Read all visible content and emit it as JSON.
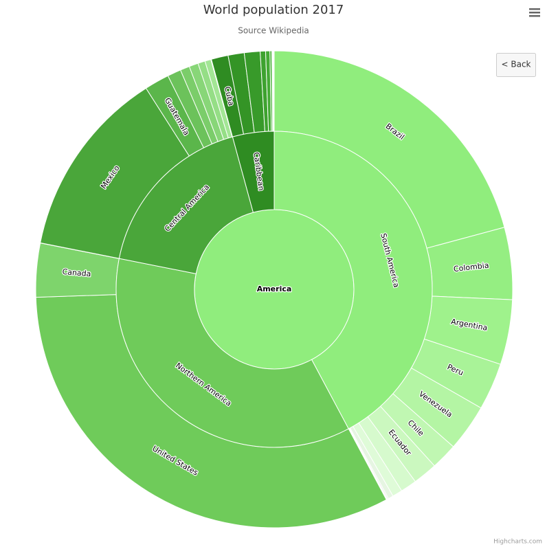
{
  "chart_data": {
    "type": "sunburst",
    "title": "World population 2017",
    "subtitle": "Source Wikipedia",
    "root": {
      "name": "America",
      "color": "#90ed7d"
    },
    "groups": [
      {
        "name": "South America",
        "color": "#90ed7d",
        "children": [
          {
            "name": "Brazil",
            "value": 209288278,
            "color": "#90ed7d"
          },
          {
            "name": "Colombia",
            "value": 49065615,
            "color": "#95ee82"
          },
          {
            "name": "Argentina",
            "value": 44271041,
            "color": "#9ff28c"
          },
          {
            "name": "Peru",
            "value": 32165485,
            "color": "#a9f398"
          },
          {
            "name": "Venezuela",
            "value": 31977065,
            "color": "#b4f5a4"
          },
          {
            "name": "Chile",
            "value": 18054726,
            "color": "#c0f7b2"
          },
          {
            "name": "Ecuador",
            "value": 16624858,
            "color": "#cbf8bf"
          },
          {
            "name": null,
            "value": 11051600,
            "color": "#d6facd"
          },
          {
            "name": null,
            "value": 6811297,
            "color": "#dffbd8"
          },
          {
            "name": null,
            "value": 3456750,
            "color": "#e6f5e2"
          },
          {
            "name": null,
            "value": 777859,
            "color": "#e4e8e2"
          },
          {
            "name": null,
            "value": 563402,
            "color": "#e2e2e2"
          },
          {
            "name": null,
            "value": 282731,
            "color": "#dddddd"
          }
        ]
      },
      {
        "name": "Northern America",
        "color": "#6fcb5a",
        "children": [
          {
            "name": "United States",
            "value": 324459463,
            "color": "#6fcb5a"
          },
          {
            "name": "Canada",
            "value": 36624199,
            "color": "#7ed46c"
          },
          {
            "name": null,
            "value": 61349,
            "color": "#8fdc7e"
          },
          {
            "name": null,
            "value": 56480,
            "color": "#a0e490"
          }
        ]
      },
      {
        "name": "Central America",
        "color": "#4aa63a",
        "children": [
          {
            "name": "Mexico",
            "value": 129163276,
            "color": "#4aa63a"
          },
          {
            "name": "Guatemala",
            "value": 16913503,
            "color": "#5bb64b"
          },
          {
            "name": null,
            "value": 9265067,
            "color": "#6cc25b"
          },
          {
            "name": null,
            "value": 6377853,
            "color": "#7bcd6a"
          },
          {
            "name": null,
            "value": 6217581,
            "color": "#88d678"
          },
          {
            "name": null,
            "value": 4905769,
            "color": "#95de86"
          },
          {
            "name": null,
            "value": 4098587,
            "color": "#a3e695"
          },
          {
            "name": null,
            "value": 374681,
            "color": "#b3eda4"
          }
        ]
      },
      {
        "name": "Caribbean",
        "color": "#2f8c22",
        "children": [
          {
            "name": "Cuba",
            "value": 11484636,
            "color": "#2f8c22"
          },
          {
            "name": null,
            "value": 10981229,
            "color": "#349426"
          },
          {
            "name": null,
            "value": 10766998,
            "color": "#389a2a"
          },
          {
            "name": null,
            "value": 3663131,
            "color": "#3ea22f"
          },
          {
            "name": null,
            "value": 2890299,
            "color": "#44aa34"
          },
          {
            "name": null,
            "value": 1369125,
            "color": "#4cb43c"
          },
          {
            "name": null,
            "value": 449568,
            "color": "#c8d8c4"
          },
          {
            "name": null,
            "value": 395361,
            "color": "#d4d4d4"
          },
          {
            "name": null,
            "value": 384896,
            "color": "#dadada"
          },
          {
            "name": null,
            "value": 285719,
            "color": "#e0e0e0"
          }
        ]
      }
    ]
  },
  "back_button": "< Back",
  "credits": "Highcharts.com"
}
